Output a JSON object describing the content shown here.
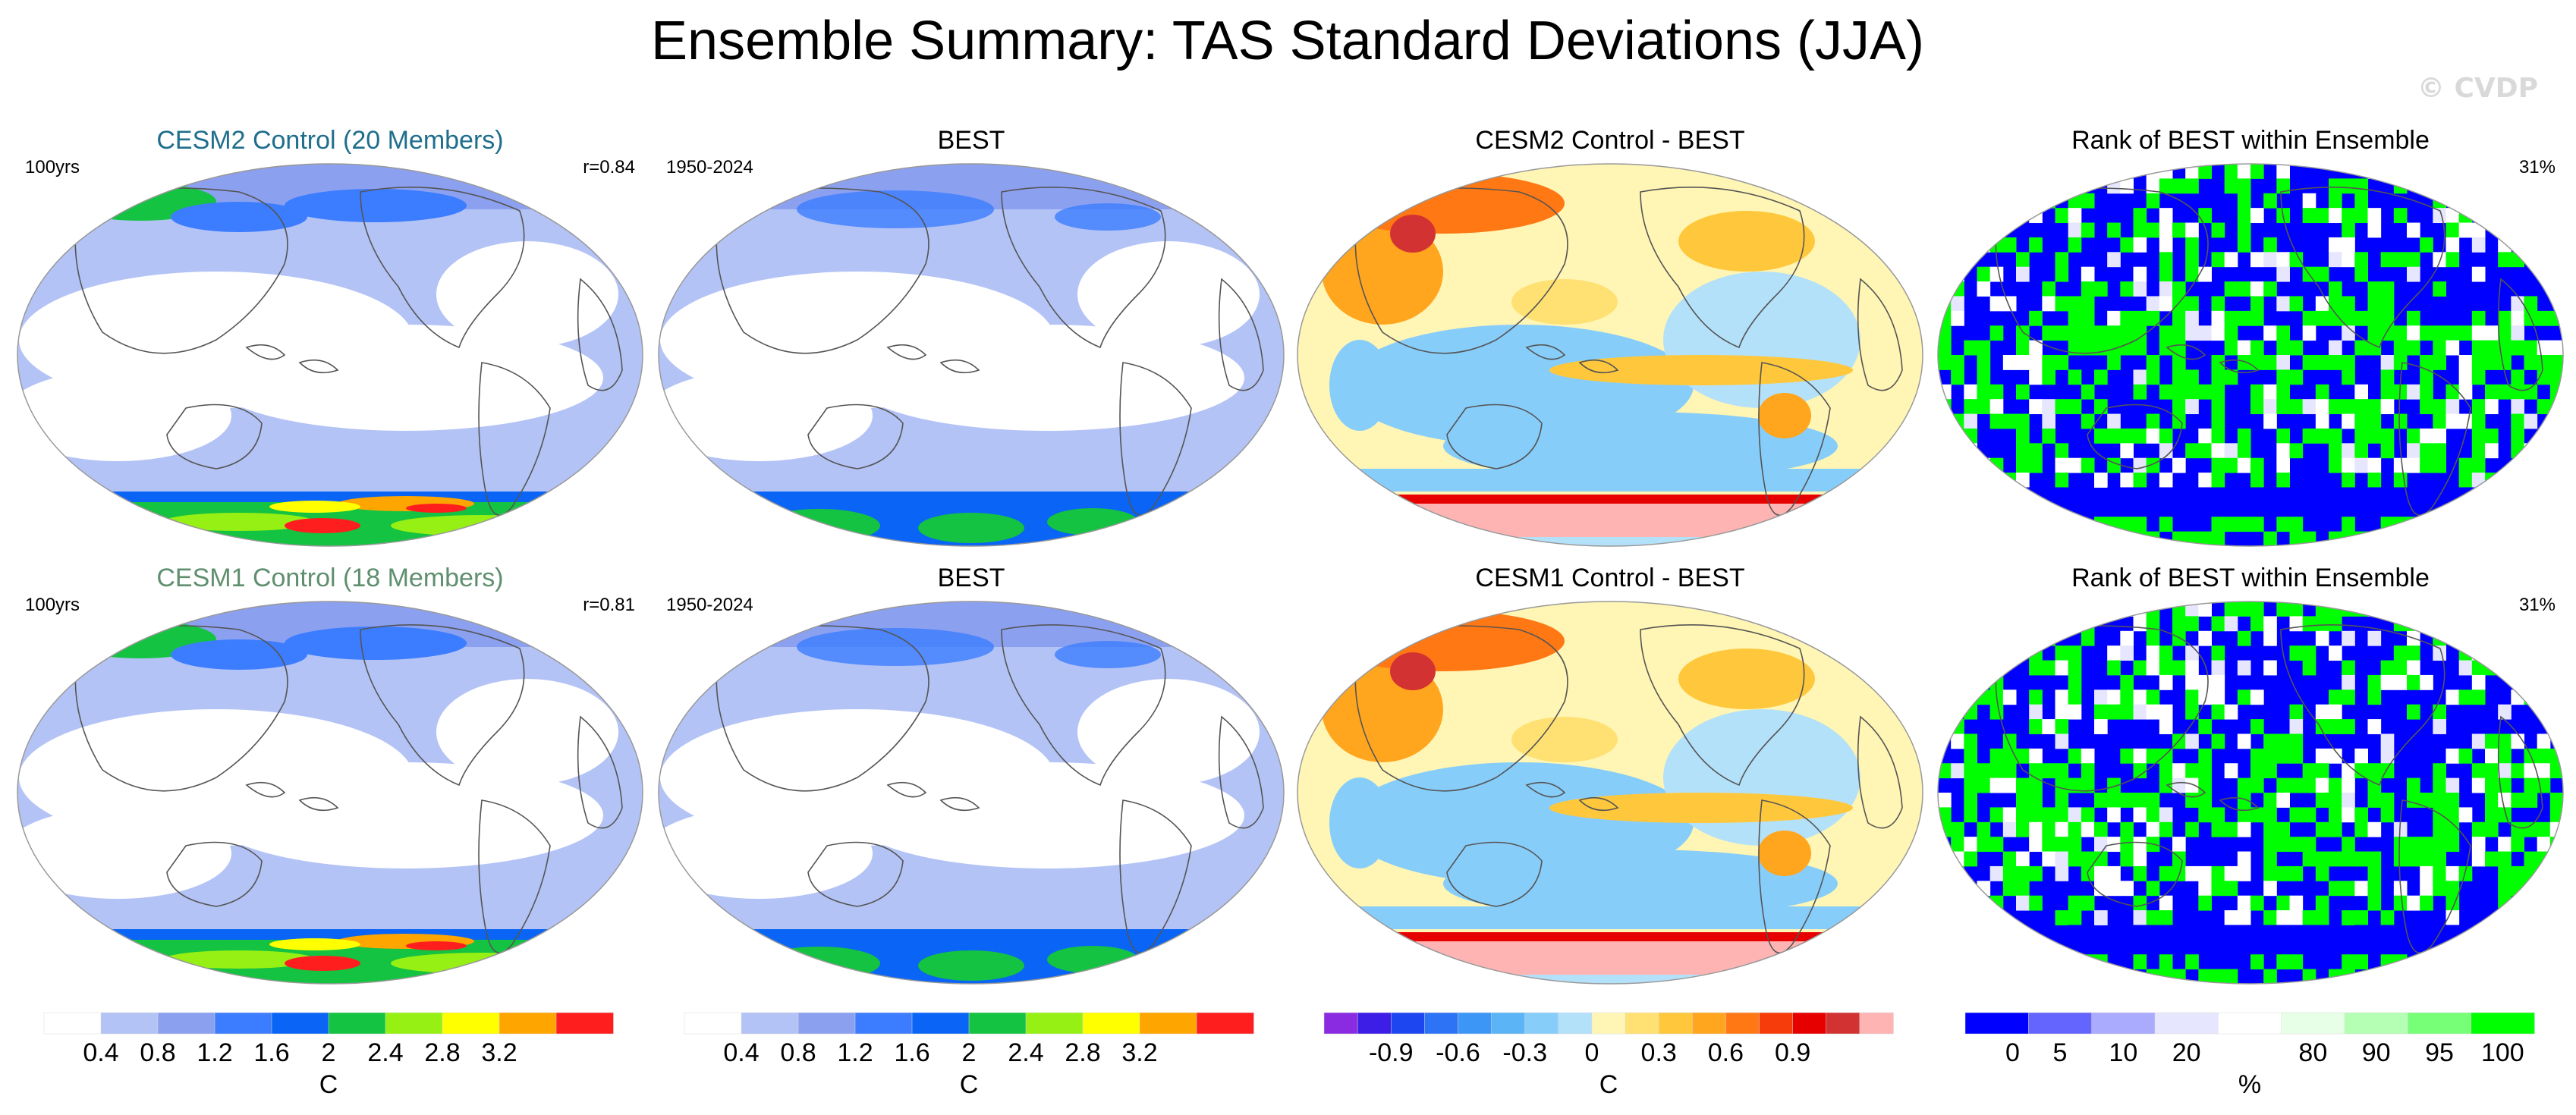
{
  "figure": {
    "title": "Ensemble Summary: TAS Standard Deviations (JJA)",
    "watermark": "© CVDP",
    "colors": {
      "ocean_white": "#ffffff",
      "coastline": "#555555",
      "model_title_row1": "#1f6e8c",
      "model_title_row2": "#5f8f6f"
    }
  },
  "chart_data": [
    {
      "type": "heatmap",
      "panel": "stddev",
      "title": "CESM2 Control (20 Members)",
      "left_label": "100yrs",
      "right_label": "r=0.84",
      "variable": "TAS standard deviation",
      "units": "C",
      "season": "JJA",
      "pattern_correlation": 0.84,
      "regions": [
        {
          "region": "Antarctica",
          "value_range": [
            1.6,
            3.2
          ]
        },
        {
          "region": "Southern Ocean",
          "value_range": [
            0.4,
            1.2
          ]
        },
        {
          "region": "Arctic",
          "value_range": [
            0.8,
            1.6
          ]
        },
        {
          "region": "Tropical oceans",
          "value_range": [
            0.0,
            0.4
          ]
        }
      ]
    },
    {
      "type": "heatmap",
      "panel": "stddev",
      "title": "BEST",
      "left_label": "1950-2024",
      "right_label": "",
      "units": "C",
      "regions": [
        {
          "region": "Antarctica",
          "value_range": [
            1.2,
            2.0
          ]
        },
        {
          "region": "Arctic",
          "value_range": [
            0.8,
            1.2
          ]
        },
        {
          "region": "Tropical oceans",
          "value_range": [
            0.0,
            0.4
          ]
        }
      ]
    },
    {
      "type": "heatmap",
      "panel": "difference",
      "title": "CESM2 Control - BEST",
      "units": "C",
      "regions": [
        {
          "region": "Antarctic coast",
          "value_range": [
            0.9,
            1.0
          ]
        },
        {
          "region": "Siberia",
          "value_range": [
            0.3,
            0.9
          ]
        },
        {
          "region": "Equatorial Pacific",
          "value_range": [
            0.0,
            0.4
          ]
        },
        {
          "region": "Southern Ocean",
          "value_range": [
            -0.3,
            0.0
          ]
        }
      ]
    },
    {
      "type": "heatmap",
      "panel": "rank",
      "title": "Rank of BEST within Ensemble",
      "right_label": "31%",
      "units": "%",
      "summary_value": 31
    },
    {
      "type": "heatmap",
      "panel": "stddev",
      "title": "CESM1 Control (18 Members)",
      "left_label": "100yrs",
      "right_label": "r=0.81",
      "units": "C",
      "pattern_correlation": 0.81,
      "regions": [
        {
          "region": "Antarctica",
          "value_range": [
            1.6,
            3.2
          ]
        },
        {
          "region": "Arctic",
          "value_range": [
            0.8,
            2.0
          ]
        },
        {
          "region": "Tropical oceans",
          "value_range": [
            0.0,
            0.4
          ]
        }
      ]
    },
    {
      "type": "heatmap",
      "panel": "stddev",
      "title": "BEST",
      "left_label": "1950-2024",
      "right_label": "",
      "units": "C",
      "regions": [
        {
          "region": "Antarctica",
          "value_range": [
            1.2,
            2.0
          ]
        },
        {
          "region": "Tropical oceans",
          "value_range": [
            0.0,
            0.4
          ]
        }
      ]
    },
    {
      "type": "heatmap",
      "panel": "difference",
      "title": "CESM1 Control - BEST",
      "units": "C",
      "regions": [
        {
          "region": "Antarctic coast",
          "value_range": [
            0.9,
            1.0
          ]
        },
        {
          "region": "Siberia",
          "value_range": [
            0.3,
            0.9
          ]
        },
        {
          "region": "Southern Ocean",
          "value_range": [
            -0.3,
            0.0
          ]
        }
      ]
    },
    {
      "type": "heatmap",
      "panel": "rank",
      "title": "Rank of BEST within Ensemble",
      "right_label": "31%",
      "units": "%",
      "summary_value": 31
    }
  ],
  "colorbars": [
    {
      "name": "stddev",
      "units": "C",
      "colors": [
        "#ffffff",
        "#b4c3f5",
        "#8ca0f0",
        "#3c7dff",
        "#0a64f5",
        "#14c341",
        "#96f014",
        "#ffff00",
        "#ffa500",
        "#ff1e1e"
      ],
      "tick_labels": [
        "0.4",
        "0.8",
        "1.2",
        "1.6",
        "2",
        "2.4",
        "2.8",
        "3.2"
      ]
    },
    {
      "name": "stddev",
      "units": "C",
      "colors": [
        "#ffffff",
        "#b4c3f5",
        "#8ca0f0",
        "#3c7dff",
        "#0a64f5",
        "#14c341",
        "#96f014",
        "#ffff00",
        "#ffa500",
        "#ff1e1e"
      ],
      "tick_labels": [
        "0.4",
        "0.8",
        "1.2",
        "1.6",
        "2",
        "2.4",
        "2.8",
        "3.2"
      ]
    },
    {
      "name": "difference",
      "units": "C",
      "colors": [
        "#8a2be2",
        "#3c1ee6",
        "#1e46f0",
        "#2d73f5",
        "#3c96f5",
        "#5ab4f5",
        "#87cdfa",
        "#b4e1fa",
        "#fff5b4",
        "#ffe173",
        "#ffc83c",
        "#ffa51e",
        "#ff7814",
        "#f53c0a",
        "#e60000",
        "#d23232",
        "#ffb4b4"
      ],
      "tick_labels": [
        "-0.9",
        "-0.6",
        "-0.3",
        "0",
        "0.3",
        "0.6",
        "0.9"
      ]
    },
    {
      "name": "rank",
      "units": "%",
      "colors": [
        "#0000ff",
        "#6464ff",
        "#aaaaff",
        "#e6e6ff",
        "#ffffff",
        "#e6ffe6",
        "#b4ffb4",
        "#78ff78",
        "#00ff00"
      ],
      "tick_labels": [
        "0",
        "5",
        "10",
        "20",
        "80",
        "90",
        "95",
        "100"
      ]
    }
  ]
}
